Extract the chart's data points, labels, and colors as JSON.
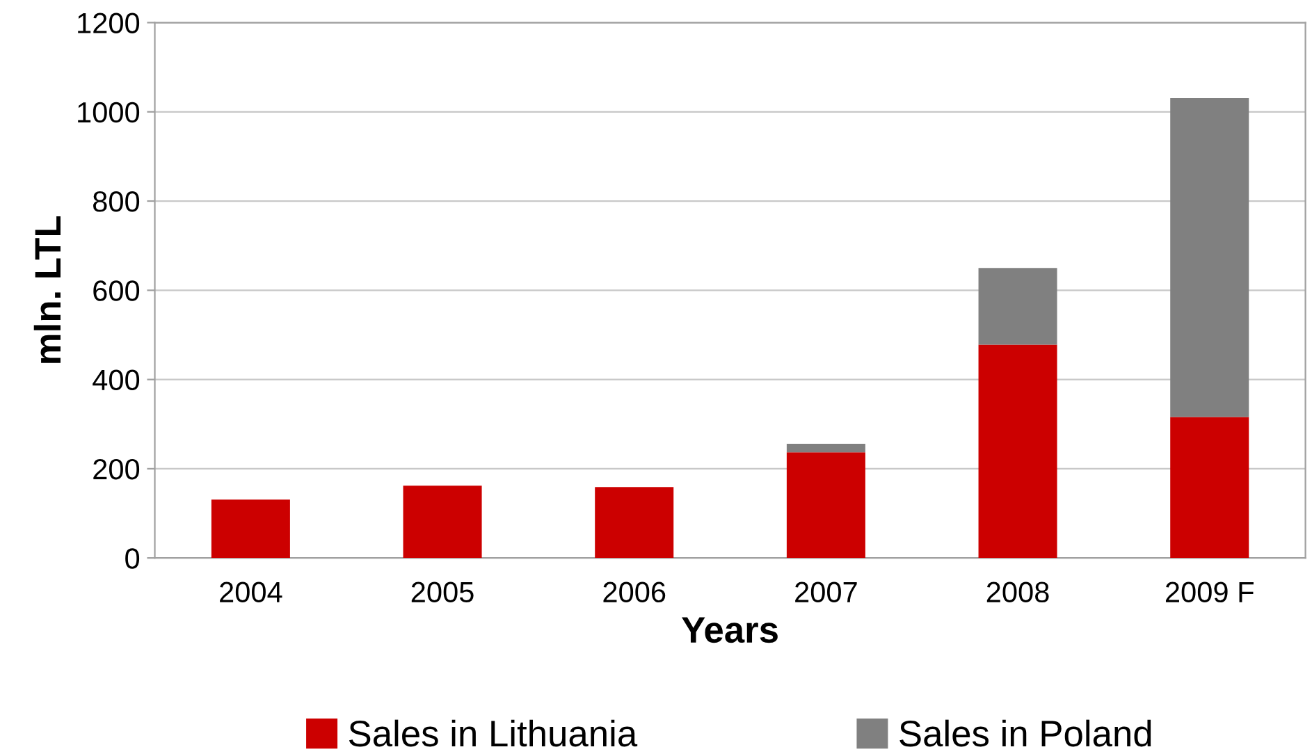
{
  "chart_data": {
    "type": "bar",
    "stacked": true,
    "xlabel": "Years",
    "ylabel": "mln. LTL",
    "categories": [
      "2004",
      "2005",
      "2006",
      "2007",
      "2008",
      "2009 F"
    ],
    "series": [
      {
        "name": "Sales in Lithuania",
        "color": "#cc0000",
        "values": [
          131,
          162,
          159,
          237,
          478,
          316
        ]
      },
      {
        "name": "Sales in Poland",
        "color": "#808080",
        "values": [
          0,
          0,
          0,
          19,
          172,
          715
        ]
      }
    ],
    "ylim": [
      0,
      1200
    ],
    "yticks": [
      0,
      200,
      400,
      600,
      800,
      1000,
      1200
    ],
    "grid": "y",
    "legend": "bottom"
  }
}
